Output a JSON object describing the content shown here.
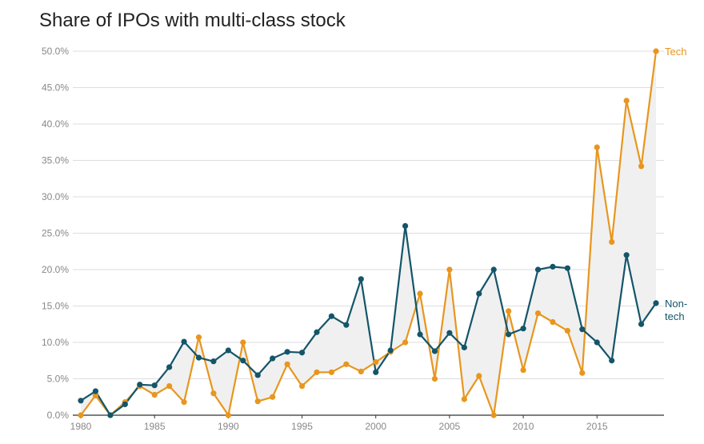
{
  "chart_data": {
    "type": "line",
    "title": "Share of IPOs with multi-class stock",
    "xlabel": "",
    "ylabel": "",
    "ylim": [
      0,
      50
    ],
    "xlim": [
      1980,
      2019
    ],
    "grid": true,
    "y_tick_labels": [
      "0.0%",
      "5.0%",
      "10.0%",
      "15.0%",
      "20.0%",
      "25.0%",
      "30.0%",
      "35.0%",
      "40.0%",
      "45.0%",
      "50.0%"
    ],
    "x_tick_labels": [
      "1980",
      "1985",
      "1990",
      "1995",
      "2000",
      "2005",
      "2010",
      "2015"
    ],
    "x": [
      1980,
      1981,
      1982,
      1983,
      1984,
      1985,
      1986,
      1987,
      1988,
      1989,
      1990,
      1991,
      1992,
      1993,
      1994,
      1995,
      1996,
      1997,
      1998,
      1999,
      2000,
      2001,
      2002,
      2003,
      2004,
      2005,
      2006,
      2007,
      2008,
      2009,
      2010,
      2011,
      2012,
      2013,
      2014,
      2015,
      2016,
      2017,
      2018,
      2019
    ],
    "series": [
      {
        "name": "Tech",
        "label_lines": [
          "Tech"
        ],
        "color": "#e8961e",
        "values": [
          0.0,
          2.7,
          0.0,
          1.8,
          4.0,
          2.8,
          4.0,
          1.8,
          10.7,
          3.0,
          0.0,
          10.0,
          1.9,
          2.5,
          7.0,
          4.0,
          5.9,
          5.9,
          7.0,
          6.0,
          7.3,
          8.7,
          10.0,
          16.7,
          5.0,
          20.0,
          2.2,
          5.4,
          0.0,
          14.3,
          6.2,
          14.0,
          12.8,
          11.6,
          5.8,
          36.8,
          23.8,
          43.2,
          34.2,
          50.0
        ]
      },
      {
        "name": "Non-tech",
        "label_lines": [
          "Non-",
          "tech"
        ],
        "color": "#145569",
        "values": [
          2.0,
          3.3,
          0.0,
          1.5,
          4.2,
          4.1,
          6.6,
          10.1,
          7.9,
          7.4,
          8.9,
          7.5,
          5.5,
          7.8,
          8.7,
          8.6,
          11.4,
          13.6,
          12.4,
          18.7,
          5.9,
          8.9,
          26.0,
          11.1,
          8.8,
          11.3,
          9.3,
          16.7,
          20.0,
          11.1,
          11.9,
          20.0,
          20.4,
          20.2,
          11.8,
          10.0,
          7.5,
          22.0,
          12.5,
          15.4
        ]
      }
    ]
  }
}
